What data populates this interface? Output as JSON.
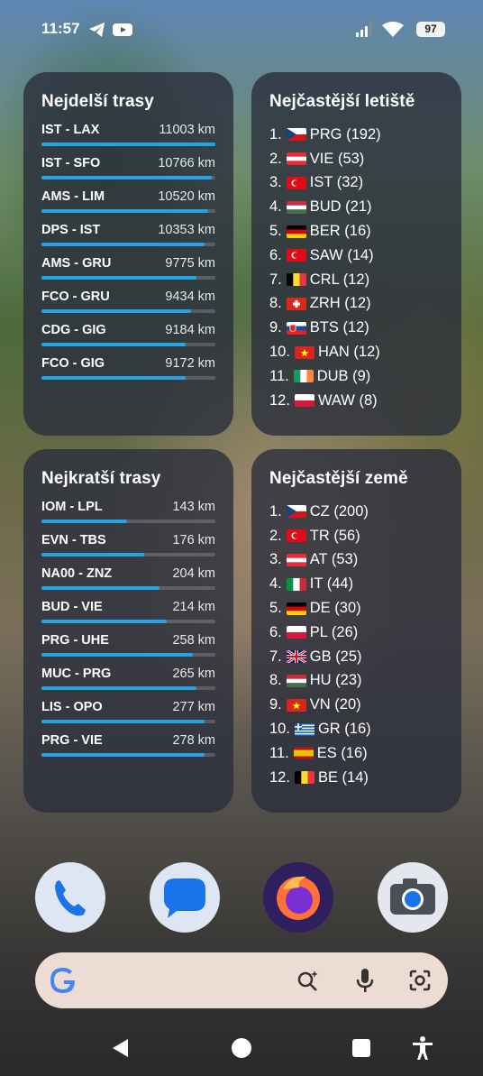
{
  "status": {
    "time": "11:57",
    "battery": "97"
  },
  "longest": {
    "title": "Nejdelší trasy",
    "routes": [
      {
        "name": "IST - LAX",
        "dist": "11003 km",
        "frac": 1.0
      },
      {
        "name": "IST - SFO",
        "dist": "10766 km",
        "frac": 0.98
      },
      {
        "name": "AMS - LIM",
        "dist": "10520 km",
        "frac": 0.96
      },
      {
        "name": "DPS - IST",
        "dist": "10353 km",
        "frac": 0.94
      },
      {
        "name": "AMS - GRU",
        "dist": "9775 km",
        "frac": 0.89
      },
      {
        "name": "FCO - GRU",
        "dist": "9434 km",
        "frac": 0.86
      },
      {
        "name": "CDG - GIG",
        "dist": "9184 km",
        "frac": 0.83
      },
      {
        "name": "FCO - GIG",
        "dist": "9172 km",
        "frac": 0.83
      }
    ]
  },
  "airports": {
    "title": "Nejčastější letiště",
    "items": [
      {
        "num": "1.",
        "flag": "cz",
        "label": "PRG (192)"
      },
      {
        "num": "2.",
        "flag": "at",
        "label": "VIE (53)"
      },
      {
        "num": "3.",
        "flag": "tr",
        "label": "IST (32)"
      },
      {
        "num": "4.",
        "flag": "hu",
        "label": "BUD (21)"
      },
      {
        "num": "5.",
        "flag": "de",
        "label": "BER (16)"
      },
      {
        "num": "6.",
        "flag": "tr",
        "label": "SAW (14)"
      },
      {
        "num": "7.",
        "flag": "be",
        "label": "CRL (12)"
      },
      {
        "num": "8.",
        "flag": "ch",
        "label": "ZRH (12)"
      },
      {
        "num": "9.",
        "flag": "sk",
        "label": "BTS (12)"
      },
      {
        "num": "10.",
        "flag": "vn",
        "label": "HAN (12)"
      },
      {
        "num": "11.",
        "flag": "ie",
        "label": "DUB (9)"
      },
      {
        "num": "12.",
        "flag": "pl",
        "label": "WAW (8)"
      }
    ]
  },
  "shortest": {
    "title": "Nejkratší trasy",
    "routes": [
      {
        "name": "IOM - LPL",
        "dist": "143 km",
        "frac": 0.49
      },
      {
        "name": "EVN - TBS",
        "dist": "176 km",
        "frac": 0.59
      },
      {
        "name": "NA00 - ZNZ",
        "dist": "204 km",
        "frac": 0.68
      },
      {
        "name": "BUD - VIE",
        "dist": "214 km",
        "frac": 0.72
      },
      {
        "name": "PRG - UHE",
        "dist": "258 km",
        "frac": 0.87
      },
      {
        "name": "MUC - PRG",
        "dist": "265 km",
        "frac": 0.89
      },
      {
        "name": "LIS - OPO",
        "dist": "277 km",
        "frac": 0.94
      },
      {
        "name": "PRG - VIE",
        "dist": "278 km",
        "frac": 0.94
      }
    ]
  },
  "countries": {
    "title": "Nejčastější země",
    "items": [
      {
        "num": "1.",
        "flag": "cz",
        "label": "CZ (200)"
      },
      {
        "num": "2.",
        "flag": "tr",
        "label": "TR (56)"
      },
      {
        "num": "3.",
        "flag": "at",
        "label": "AT (53)"
      },
      {
        "num": "4.",
        "flag": "it",
        "label": "IT (44)"
      },
      {
        "num": "5.",
        "flag": "de",
        "label": "DE (30)"
      },
      {
        "num": "6.",
        "flag": "pl",
        "label": "PL (26)"
      },
      {
        "num": "7.",
        "flag": "gb",
        "label": "GB (25)"
      },
      {
        "num": "8.",
        "flag": "hu",
        "label": "HU (23)"
      },
      {
        "num": "9.",
        "flag": "vn",
        "label": "VN (20)"
      },
      {
        "num": "10.",
        "flag": "gr",
        "label": "GR (16)"
      },
      {
        "num": "11.",
        "flag": "es",
        "label": "ES (16)"
      },
      {
        "num": "12.",
        "flag": "be",
        "label": "BE (14)"
      }
    ]
  },
  "dock": [
    "phone-app-icon",
    "messages-app-icon",
    "firefox-app-icon",
    "camera-app-icon"
  ],
  "colors": {
    "bar": "#25a4e6",
    "card": "rgba(42,46,60,0.80)"
  }
}
